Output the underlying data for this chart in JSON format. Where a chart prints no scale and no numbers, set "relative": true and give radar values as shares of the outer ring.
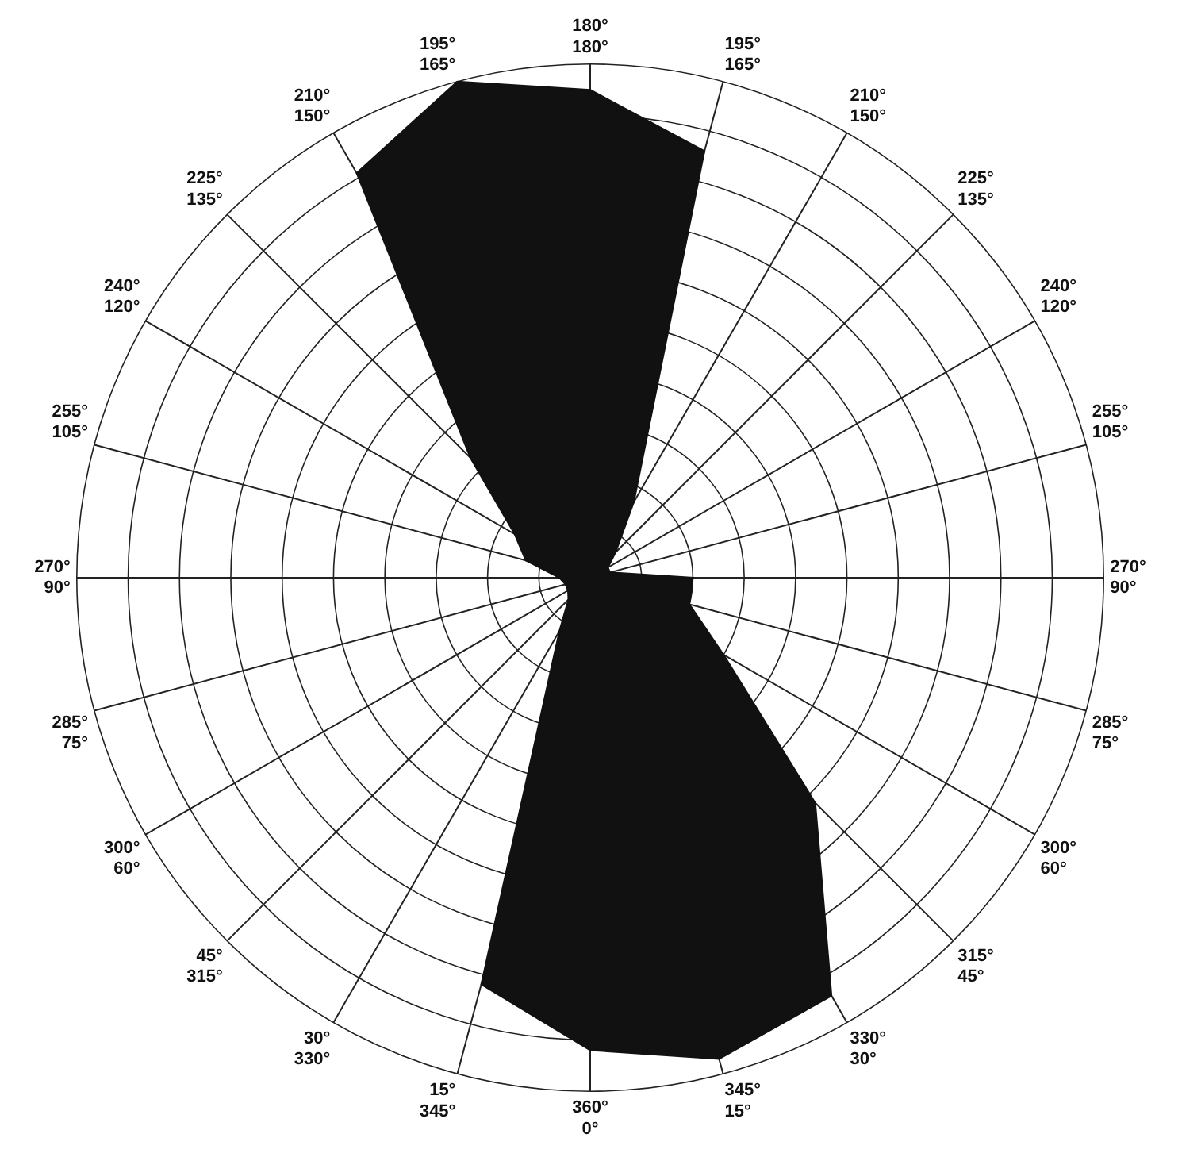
{
  "chart_data": {
    "type": "radar",
    "relative": true,
    "grid": true,
    "legend": false,
    "marker": "none",
    "categories": [
      "180°\n180°",
      "195°\n165°",
      "210°\n150°",
      "225°\n135°",
      "240°\n120°",
      "255°\n105°",
      "270°\n90°",
      "285°\n75°",
      "300°\n60°",
      "315°\n45°",
      "330°\n30°",
      "345°\n15°",
      "360°\n0°",
      "15°\n345°",
      "30°\n330°",
      "45°\n315°",
      "300°\n60°",
      "285°\n75°",
      "270°\n90°",
      "255°\n105°",
      "240°\n120°",
      "225°\n135°",
      "210°\n150°",
      "195°\n165°"
    ],
    "series": [
      {
        "color": "#111111",
        "values": [
          0.95,
          0.86,
          0.17,
          0.07,
          0.04,
          0.04,
          0.2,
          0.2,
          0.3,
          0.62,
          0.94,
          0.97,
          0.92,
          0.82,
          0.12,
          0.06,
          0.05,
          0.05,
          0.06,
          0.13,
          0.17,
          0.33,
          0.91,
          1.0
        ]
      }
    ]
  }
}
